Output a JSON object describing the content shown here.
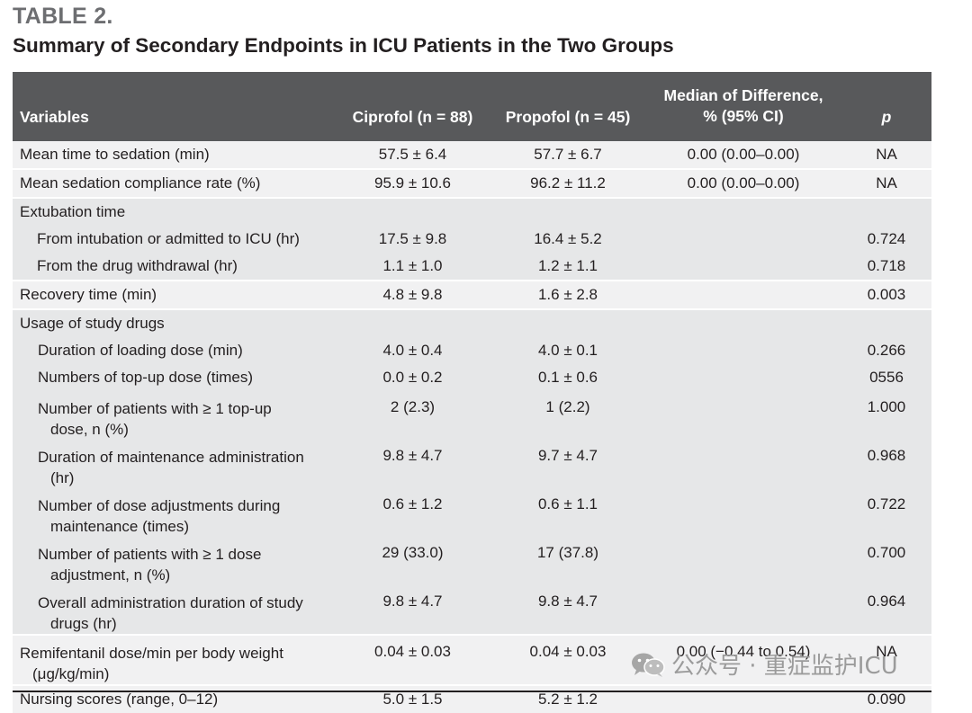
{
  "table_label": "TABLE 2.",
  "table_title": "Summary of Secondary Endpoints in ICU Patients in the Two Groups",
  "headers": {
    "variables": "Variables",
    "ciprofol": "Ciprofol (n = 88)",
    "propofol": "Propofol (n = 45)",
    "diff_line1": "Median of Difference,",
    "diff_line2": "% (95% CI)",
    "p": "p"
  },
  "rows": [
    {
      "label": "Mean time to sedation (min)",
      "cipro": "57.5 ± 6.4",
      "propo": "57.7 ± 6.7",
      "diff": "0.00 (0.00–0.00)",
      "p": "NA"
    },
    {
      "label": "Mean sedation compliance rate (%)",
      "cipro": "95.9 ± 10.6",
      "propo": "96.2 ± 11.2",
      "diff": "0.00 (0.00–0.00)",
      "p": "NA"
    },
    {
      "label": "Extubation time",
      "cipro": "",
      "propo": "",
      "diff": "",
      "p": ""
    },
    {
      "label": "From intubation or admitted to ICU (hr)",
      "cipro": "17.5 ± 9.8",
      "propo": "16.4 ± 5.2",
      "diff": "",
      "p": "0.724"
    },
    {
      "label": "From the drug withdrawal (hr)",
      "cipro": "1.1 ± 1.0",
      "propo": "1.2 ± 1.1",
      "diff": "",
      "p": "0.718"
    },
    {
      "label": "Recovery time (min)",
      "cipro": "4.8 ± 9.8",
      "propo": "1.6 ± 2.8",
      "diff": "",
      "p": "0.003"
    },
    {
      "label": "Usage of study drugs",
      "cipro": "",
      "propo": "",
      "diff": "",
      "p": ""
    },
    {
      "label": "Duration of loading dose (min)",
      "cipro": "4.0 ± 0.4",
      "propo": "4.0 ± 0.1",
      "diff": "",
      "p": "0.266"
    },
    {
      "label": "Numbers of top-up dose (times)",
      "cipro": "0.0 ± 0.2",
      "propo": "0.1 ± 0.6",
      "diff": "",
      "p": "0556"
    },
    {
      "label1": "Number of patients with ≥ 1 top-up",
      "label2": "dose, n (%)",
      "cipro": "2 (2.3)",
      "propo": "1 (2.2)",
      "diff": "",
      "p": "1.000"
    },
    {
      "label1": "Duration of maintenance administration",
      "label2": "(hr)",
      "cipro": "9.8 ± 4.7",
      "propo": "9.7 ± 4.7",
      "diff": "",
      "p": "0.968"
    },
    {
      "label1": "Number of dose adjustments during",
      "label2": "maintenance (times)",
      "cipro": "0.6 ± 1.2",
      "propo": "0.6 ± 1.1",
      "diff": "",
      "p": "0.722"
    },
    {
      "label1": "Number of patients with ≥ 1 dose",
      "label2": "adjustment, n (%)",
      "cipro": "29 (33.0)",
      "propo": "17 (37.8)",
      "diff": "",
      "p": "0.700"
    },
    {
      "label1": "Overall administration duration of study",
      "label2": "drugs (hr)",
      "cipro": "9.8 ± 4.7",
      "propo": "9.8 ± 4.7",
      "diff": "",
      "p": "0.964"
    },
    {
      "label1": "Remifentanil dose/min per body weight",
      "label2": "(μg/kg/min)",
      "cipro": "0.04 ± 0.03",
      "propo": "0.04 ± 0.03",
      "diff": "0.00 (−0.44 to 0.54)",
      "p": "NA"
    },
    {
      "label": "Nursing scores (range, 0–12)",
      "cipro": "5.0 ± 1.5",
      "propo": "5.2 ± 1.2",
      "diff": "",
      "p": "0.090"
    }
  ],
  "watermark": {
    "text": "公众号 · 重症监护ICU",
    "icon": "wechat-icon"
  }
}
